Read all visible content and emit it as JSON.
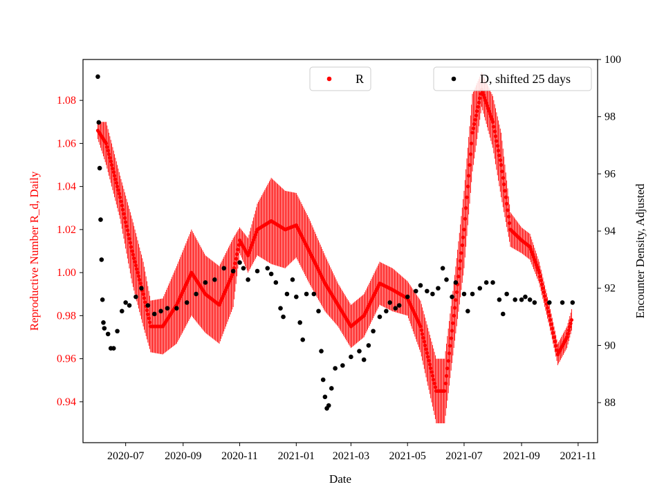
{
  "chart_data": {
    "type": "scatter",
    "xlabel": "Date",
    "ylabel_left": "Reproductive Number R_d, Daily",
    "ylabel_right": "Encounter Density, Adjusted",
    "x_ticks": [
      "2020-07",
      "2020-09",
      "2020-11",
      "2021-01",
      "2021-03",
      "2021-05",
      "2021-07",
      "2021-09",
      "2021-11"
    ],
    "ylim_left": [
      0.921,
      1.099
    ],
    "ylim_right": [
      86.6,
      100.0
    ],
    "left_ticks": [
      0.94,
      0.96,
      0.98,
      1.0,
      1.02,
      1.04,
      1.06,
      1.08
    ],
    "right_ticks": [
      88,
      90,
      92,
      94,
      96,
      98,
      100
    ],
    "x_range": [
      "2020-05-16",
      "2021-11-22"
    ],
    "colors": {
      "r_series": "#ff0000",
      "d_series": "#000000",
      "left_axis": "#ff0000",
      "right_axis": "#000000"
    },
    "legend": {
      "r_label": "R",
      "d_label": "D, shifted 25 days"
    },
    "r_series": {
      "name": "R",
      "anchors": [
        [
          "2020-06-01",
          1.066,
          0.004
        ],
        [
          "2020-06-10",
          1.06,
          0.01
        ],
        [
          "2020-06-25",
          1.035,
          0.01
        ],
        [
          "2020-07-08",
          1.01,
          0.015
        ],
        [
          "2020-07-20",
          0.99,
          0.015
        ],
        [
          "2020-07-28",
          0.975,
          0.012
        ],
        [
          "2020-08-10",
          0.975,
          0.013
        ],
        [
          "2020-08-25",
          0.985,
          0.018
        ],
        [
          "2020-09-10",
          1.0,
          0.02
        ],
        [
          "2020-09-25",
          0.99,
          0.018
        ],
        [
          "2020-10-10",
          0.985,
          0.018
        ],
        [
          "2020-10-25",
          1.0,
          0.016
        ],
        [
          "2020-11-01",
          1.015,
          0.006
        ],
        [
          "2020-11-10",
          1.008,
          0.008
        ],
        [
          "2020-11-20",
          1.02,
          0.012
        ],
        [
          "2020-12-05",
          1.024,
          0.02
        ],
        [
          "2020-12-20",
          1.02,
          0.018
        ],
        [
          "2021-01-01",
          1.022,
          0.015
        ],
        [
          "2021-01-15",
          1.01,
          0.015
        ],
        [
          "2021-02-01",
          0.995,
          0.013
        ],
        [
          "2021-02-15",
          0.985,
          0.01
        ],
        [
          "2021-03-01",
          0.975,
          0.01
        ],
        [
          "2021-03-15",
          0.98,
          0.01
        ],
        [
          "2021-04-01",
          0.995,
          0.01
        ],
        [
          "2021-04-15",
          0.992,
          0.01
        ],
        [
          "2021-05-01",
          0.988,
          0.008
        ],
        [
          "2021-05-15",
          0.975,
          0.012
        ],
        [
          "2021-06-01",
          0.945,
          0.015
        ],
        [
          "2021-06-10",
          0.945,
          0.015
        ],
        [
          "2021-06-20",
          0.98,
          0.015
        ],
        [
          "2021-07-01",
          1.02,
          0.018
        ],
        [
          "2021-07-10",
          1.065,
          0.018
        ],
        [
          "2021-07-20",
          1.085,
          0.008
        ],
        [
          "2021-08-01",
          1.07,
          0.012
        ],
        [
          "2021-08-10",
          1.05,
          0.015
        ],
        [
          "2021-08-20",
          1.02,
          0.008
        ],
        [
          "2021-09-01",
          1.015,
          0.006
        ],
        [
          "2021-09-10",
          1.012,
          0.006
        ],
        [
          "2021-09-20",
          1.0,
          0.005
        ],
        [
          "2021-10-01",
          0.98,
          0.005
        ],
        [
          "2021-10-10",
          0.962,
          0.005
        ],
        [
          "2021-10-20",
          0.97,
          0.005
        ],
        [
          "2021-10-25",
          0.978,
          0.005
        ]
      ]
    },
    "d_series": {
      "name": "D, shifted 25 days",
      "points": [
        [
          "2020-06-01",
          99.4
        ],
        [
          "2020-06-02",
          97.8
        ],
        [
          "2020-06-03",
          96.2
        ],
        [
          "2020-06-04",
          94.4
        ],
        [
          "2020-06-05",
          93.0
        ],
        [
          "2020-06-06",
          91.6
        ],
        [
          "2020-06-07",
          90.8
        ],
        [
          "2020-06-08",
          90.6
        ],
        [
          "2020-06-12",
          90.4
        ],
        [
          "2020-06-15",
          89.9
        ],
        [
          "2020-06-18",
          89.9
        ],
        [
          "2020-06-22",
          90.5
        ],
        [
          "2020-06-27",
          91.2
        ],
        [
          "2020-07-01",
          91.5
        ],
        [
          "2020-07-05",
          91.4
        ],
        [
          "2020-07-12",
          91.7
        ],
        [
          "2020-07-18",
          92.0
        ],
        [
          "2020-07-25",
          91.4
        ],
        [
          "2020-08-01",
          91.1
        ],
        [
          "2020-08-08",
          91.2
        ],
        [
          "2020-08-15",
          91.3
        ],
        [
          "2020-08-25",
          91.3
        ],
        [
          "2020-09-05",
          91.5
        ],
        [
          "2020-09-15",
          91.8
        ],
        [
          "2020-09-25",
          92.2
        ],
        [
          "2020-10-05",
          92.3
        ],
        [
          "2020-10-15",
          92.7
        ],
        [
          "2020-10-25",
          92.6
        ],
        [
          "2020-11-01",
          92.9
        ],
        [
          "2020-11-05",
          92.7
        ],
        [
          "2020-11-10",
          92.3
        ],
        [
          "2020-11-20",
          92.6
        ],
        [
          "2020-12-01",
          92.7
        ],
        [
          "2020-12-05",
          92.5
        ],
        [
          "2020-12-10",
          92.2
        ],
        [
          "2020-12-15",
          91.3
        ],
        [
          "2020-12-18",
          91.0
        ],
        [
          "2020-12-22",
          91.8
        ],
        [
          "2020-12-28",
          92.3
        ],
        [
          "2021-01-01",
          91.7
        ],
        [
          "2021-01-05",
          90.8
        ],
        [
          "2021-01-08",
          90.2
        ],
        [
          "2021-01-12",
          91.8
        ],
        [
          "2021-01-20",
          91.8
        ],
        [
          "2021-01-25",
          91.2
        ],
        [
          "2021-01-28",
          89.8
        ],
        [
          "2021-01-30",
          88.8
        ],
        [
          "2021-02-01",
          88.2
        ],
        [
          "2021-02-03",
          87.8
        ],
        [
          "2021-02-05",
          87.9
        ],
        [
          "2021-02-08",
          88.5
        ],
        [
          "2021-02-12",
          89.2
        ],
        [
          "2021-02-20",
          89.3
        ],
        [
          "2021-03-01",
          89.6
        ],
        [
          "2021-03-10",
          89.8
        ],
        [
          "2021-03-15",
          89.5
        ],
        [
          "2021-03-20",
          90.0
        ],
        [
          "2021-03-25",
          90.5
        ],
        [
          "2021-04-01",
          91.0
        ],
        [
          "2021-04-08",
          91.2
        ],
        [
          "2021-04-12",
          91.5
        ],
        [
          "2021-04-18",
          91.3
        ],
        [
          "2021-04-22",
          91.4
        ],
        [
          "2021-05-01",
          91.7
        ],
        [
          "2021-05-10",
          91.9
        ],
        [
          "2021-05-15",
          92.1
        ],
        [
          "2021-05-22",
          91.9
        ],
        [
          "2021-05-28",
          91.8
        ],
        [
          "2021-06-03",
          92.0
        ],
        [
          "2021-06-08",
          92.7
        ],
        [
          "2021-06-12",
          92.3
        ],
        [
          "2021-06-18",
          91.7
        ],
        [
          "2021-06-22",
          92.2
        ],
        [
          "2021-07-01",
          91.8
        ],
        [
          "2021-07-05",
          91.2
        ],
        [
          "2021-07-10",
          91.8
        ],
        [
          "2021-07-18",
          92.0
        ],
        [
          "2021-07-25",
          92.2
        ],
        [
          "2021-08-01",
          92.2
        ],
        [
          "2021-08-08",
          91.6
        ],
        [
          "2021-08-12",
          91.1
        ],
        [
          "2021-08-16",
          91.8
        ],
        [
          "2021-08-25",
          91.6
        ],
        [
          "2021-09-01",
          91.6
        ],
        [
          "2021-09-05",
          91.7
        ],
        [
          "2021-09-10",
          91.6
        ],
        [
          "2021-09-15",
          91.5
        ],
        [
          "2021-10-01",
          91.5
        ],
        [
          "2021-10-15",
          91.5
        ],
        [
          "2021-10-26",
          91.5
        ]
      ]
    }
  }
}
